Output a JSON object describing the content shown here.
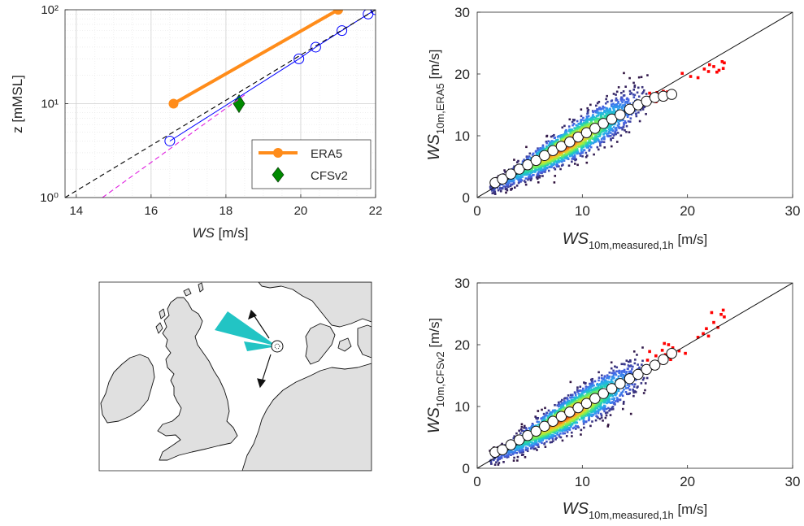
{
  "chart_data": [
    {
      "type": "line",
      "xlabel": "WS [m/s]",
      "xlabel_parts": {
        "var": "WS",
        "unit": " [m/s]"
      },
      "ylabel": "z [mMSL]",
      "xlim": [
        13.7,
        22
      ],
      "ylim": [
        1,
        100
      ],
      "y_scale": "log",
      "xticks": [
        14,
        16,
        18,
        20,
        22
      ],
      "xtick_labels": [
        "14",
        "16",
        "18",
        "20",
        "22"
      ],
      "yticks": [
        1,
        10,
        100
      ],
      "ytick_labels": [
        "10⁰",
        "10¹",
        "10²"
      ],
      "grid": true,
      "minor_grid": true,
      "legend_position": "bottom-right",
      "series": [
        {
          "name": "ERA5",
          "color": "#ff8c1a",
          "marker": "filled-circle",
          "points": [
            [
              16.6,
              10
            ],
            [
              21.0,
              100
            ]
          ]
        },
        {
          "name": "CFSv2",
          "color": "#008a00",
          "marker": "diamond",
          "points": [
            [
              18.35,
              10
            ]
          ]
        },
        {
          "color": "#0000ff",
          "marker": "open-circle",
          "points": [
            [
              16.5,
              4
            ],
            [
              19.95,
              30
            ],
            [
              20.4,
              40
            ],
            [
              21.1,
              60
            ],
            [
              21.8,
              90
            ],
            [
              22.0,
              100
            ]
          ]
        },
        {
          "color": "#000000",
          "style": "dashed",
          "points": [
            [
              13.7,
              1
            ],
            [
              22.0,
              100
            ]
          ]
        },
        {
          "color": "#e020e0",
          "style": "dashed",
          "points": [
            [
              14.7,
              1
            ],
            [
              18.5,
              12.4
            ]
          ]
        }
      ]
    },
    {
      "type": "scatter",
      "xlabel": "WS10m,measured,1h [m/s]",
      "xlabel_parts": {
        "var": "WS",
        "sub": "10m,measured,1h",
        "unit": " [m/s]"
      },
      "ylabel": "WS10m,ERA5 [m/s]",
      "ylabel_parts": {
        "var": "WS",
        "sub": "10m,ERA5",
        "unit": " [m/s]"
      },
      "xlim": [
        0,
        30
      ],
      "ylim": [
        0,
        30
      ],
      "xticks": [
        0,
        10,
        20,
        30
      ],
      "yticks": [
        0,
        10,
        20,
        30
      ],
      "grid": false,
      "reference_line": [
        [
          0,
          0
        ],
        [
          30,
          30
        ]
      ],
      "bin_means": {
        "x": [
          1.7,
          2.4,
          3.2,
          4.0,
          4.8,
          5.6,
          6.4,
          7.2,
          8.0,
          8.8,
          9.6,
          10.4,
          11.2,
          12.0,
          12.8,
          13.6,
          14.5,
          15.3,
          16.1,
          16.9,
          17.7,
          18.5
        ],
        "y": [
          2.4,
          3.0,
          3.8,
          4.6,
          5.3,
          6.0,
          6.8,
          7.6,
          8.3,
          9.0,
          9.8,
          10.5,
          11.2,
          12.0,
          12.7,
          13.4,
          14.3,
          15.0,
          15.6,
          16.2,
          16.4,
          16.7
        ]
      },
      "outliers": {
        "color": "#ff0000",
        "x": [
          16.2,
          16.5,
          16.8,
          17.1,
          17.4,
          17.7,
          17.9,
          18.2,
          16.4,
          17.0,
          17.6,
          18.1,
          19.5,
          20.3,
          21.0,
          21.6,
          22.0,
          22.5,
          23.0,
          23.3,
          23.4,
          23.5,
          22.1,
          22.8
        ],
        "y": [
          15.2,
          16.3,
          15.8,
          17.0,
          16.6,
          17.2,
          15.9,
          16.4,
          16.9,
          15.5,
          16.0,
          17.1,
          20.1,
          19.6,
          19.4,
          20.8,
          20.4,
          21.2,
          20.6,
          22.0,
          20.9,
          21.8,
          21.5,
          20.3
        ]
      }
    },
    {
      "type": "scatter",
      "xlabel": "WS10m,measured,1h [m/s]",
      "xlabel_parts": {
        "var": "WS",
        "sub": "10m,measured,1h",
        "unit": " [m/s]"
      },
      "ylabel": "WS10m,CFSv2 [m/s]",
      "ylabel_parts": {
        "var": "WS",
        "sub": "10m,CFSv2",
        "unit": " [m/s]"
      },
      "xlim": [
        0,
        30
      ],
      "ylim": [
        0,
        30
      ],
      "xticks": [
        0,
        10,
        20,
        30
      ],
      "yticks": [
        0,
        10,
        20,
        30
      ],
      "grid": false,
      "reference_line": [
        [
          0,
          0
        ],
        [
          30,
          30
        ]
      ],
      "bin_means": {
        "x": [
          1.7,
          2.4,
          3.2,
          4.0,
          4.8,
          5.6,
          6.4,
          7.2,
          8.0,
          8.8,
          9.6,
          10.4,
          11.2,
          12.0,
          12.8,
          13.6,
          14.5,
          15.3,
          16.1,
          16.9,
          17.7,
          18.5
        ],
        "y": [
          2.6,
          3.0,
          3.8,
          4.6,
          5.3,
          6.0,
          6.8,
          7.6,
          8.4,
          9.1,
          9.8,
          10.5,
          11.3,
          12.1,
          12.9,
          13.7,
          14.5,
          15.2,
          16.0,
          16.7,
          17.6,
          18.6
        ]
      },
      "outliers": {
        "color": "#ff0000",
        "x": [
          15.8,
          16.2,
          16.6,
          17.0,
          17.3,
          17.6,
          17.9,
          18.2,
          18.4,
          18.6,
          16.4,
          17.1,
          17.8,
          18.3,
          19.2,
          19.8,
          21.0,
          21.5,
          22.0,
          22.5,
          22.9,
          23.2,
          23.4,
          23.5,
          21.8,
          22.3
        ],
        "y": [
          16.2,
          17.5,
          16.8,
          18.2,
          17.0,
          19.1,
          18.4,
          20.0,
          17.6,
          19.5,
          18.9,
          16.5,
          20.2,
          18.0,
          19.0,
          18.6,
          21.2,
          21.8,
          21.4,
          23.6,
          22.8,
          24.9,
          25.6,
          24.5,
          22.6,
          25.2
        ]
      }
    }
  ],
  "map": {
    "panel": "North Sea location map",
    "rose_color": "#22c4c4",
    "land_color": "#e0e0e0"
  }
}
